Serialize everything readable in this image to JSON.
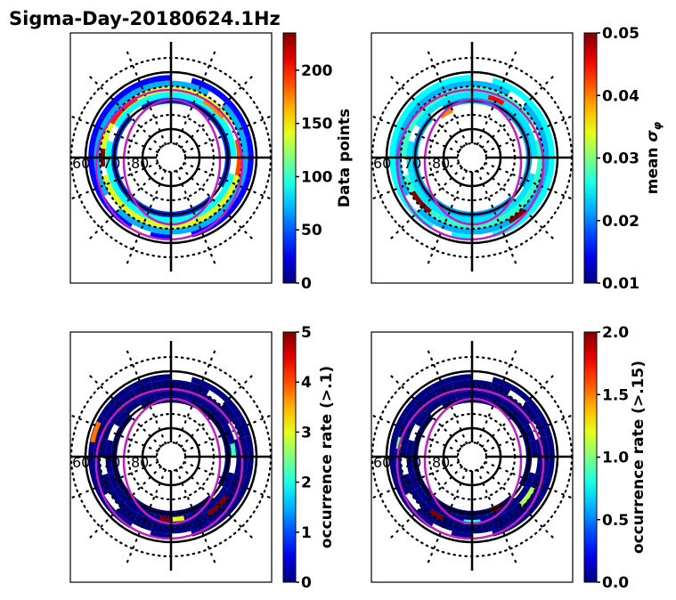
{
  "figure_title": "Sigma-Day-20180624.1Hz",
  "chart_data": [
    {
      "type": "heatmap",
      "projection": "polar (magnetic latitude / MLT)",
      "title": "",
      "colorbar_label": "Data points",
      "colormap": "jet",
      "clim": [
        0,
        235
      ],
      "colorbar_ticks": [
        "0",
        "50",
        "100",
        "150",
        "200"
      ],
      "colorbar_tick_values": [
        0,
        50,
        100,
        150,
        200
      ],
      "lat_labels": [
        "60",
        "70",
        "80"
      ],
      "lat_circles_solid": [
        60,
        70,
        80
      ],
      "lat_range": [
        60,
        90
      ],
      "bins": [
        {
          "lat": 62,
          "mlt_start": 0,
          "mlt_end": 24,
          "value": 30
        },
        {
          "lat": 64,
          "mlt_start": 0,
          "mlt_end": 24,
          "value": 70
        },
        {
          "lat": 66,
          "mlt_start": 0,
          "mlt_end": 24,
          "value": 140
        },
        {
          "lat": 68,
          "mlt_start": 0,
          "mlt_end": 24,
          "value": 90
        },
        {
          "lat": 70,
          "mlt_start": 0,
          "mlt_end": 24,
          "value": 40
        },
        {
          "lat": 66,
          "mlt_start": 14,
          "mlt_end": 16,
          "value": 200
        },
        {
          "lat": 66,
          "mlt_start": 5,
          "mlt_end": 7,
          "value": 190
        },
        {
          "lat": 67,
          "mlt_start": 8.5,
          "mlt_end": 10,
          "value": 175
        },
        {
          "lat": 66,
          "mlt_start": 17.5,
          "mlt_end": 18.5,
          "value": 235
        }
      ]
    },
    {
      "type": "heatmap",
      "projection": "polar (magnetic latitude / MLT)",
      "title": "",
      "colorbar_label": "mean σ_φ",
      "colormap": "jet",
      "clim": [
        0.01,
        0.05
      ],
      "colorbar_ticks": [
        "0.01",
        "0.02",
        "0.03",
        "0.04",
        "0.05"
      ],
      "colorbar_tick_values": [
        0.01,
        0.02,
        0.03,
        0.04,
        0.05
      ],
      "lat_labels": [
        "60",
        "70",
        "80"
      ],
      "lat_circles_solid": [
        60,
        70,
        80
      ],
      "lat_range": [
        60,
        90
      ],
      "bins": [
        {
          "lat": 62,
          "mlt_start": 0,
          "mlt_end": 24,
          "value": 0.025
        },
        {
          "lat": 64,
          "mlt_start": 0,
          "mlt_end": 24,
          "value": 0.022
        },
        {
          "lat": 66,
          "mlt_start": 0,
          "mlt_end": 24,
          "value": 0.027
        },
        {
          "lat": 68,
          "mlt_start": 0,
          "mlt_end": 24,
          "value": 0.024
        },
        {
          "lat": 70,
          "mlt_start": 0,
          "mlt_end": 24,
          "value": 0.021
        },
        {
          "lat": 66,
          "mlt_start": 20,
          "mlt_end": 21.5,
          "value": 0.05
        },
        {
          "lat": 64,
          "mlt_start": 2,
          "mlt_end": 3,
          "value": 0.05
        },
        {
          "lat": 68,
          "mlt_start": 10,
          "mlt_end": 11,
          "value": 0.045
        },
        {
          "lat": 72,
          "mlt_start": 13.5,
          "mlt_end": 14.5,
          "value": 0.04
        }
      ]
    },
    {
      "type": "heatmap",
      "projection": "polar (magnetic latitude / MLT)",
      "title": "",
      "colorbar_label": "occurrence rate (>.1)",
      "colormap": "jet",
      "clim": [
        0,
        5
      ],
      "colorbar_ticks": [
        "0",
        "1",
        "2",
        "3",
        "4",
        "5"
      ],
      "colorbar_tick_values": [
        0,
        1,
        2,
        3,
        4,
        5
      ],
      "lat_labels": [
        "60",
        "70",
        "80"
      ],
      "lat_circles_solid": [
        60,
        70,
        80
      ],
      "lat_range": [
        60,
        90
      ],
      "bins": [
        {
          "lat": 62,
          "mlt_start": 0,
          "mlt_end": 24,
          "value": 0
        },
        {
          "lat": 64,
          "mlt_start": 0,
          "mlt_end": 24,
          "value": 0
        },
        {
          "lat": 66,
          "mlt_start": 0,
          "mlt_end": 24,
          "value": 0
        },
        {
          "lat": 68,
          "mlt_start": 0,
          "mlt_end": 24,
          "value": 0
        },
        {
          "lat": 70,
          "mlt_start": 0,
          "mlt_end": 24,
          "value": 0
        },
        {
          "lat": 62,
          "mlt_start": 16.3,
          "mlt_end": 17.3,
          "value": 3.8
        },
        {
          "lat": 68,
          "mlt_start": 23.3,
          "mlt_end": 24.3,
          "value": 5
        },
        {
          "lat": 68,
          "mlt_start": 0.1,
          "mlt_end": 0.8,
          "value": 3
        },
        {
          "lat": 66,
          "mlt_start": 2.2,
          "mlt_end": 3.6,
          "value": 5
        },
        {
          "lat": 68,
          "mlt_start": 6,
          "mlt_end": 6.8,
          "value": 2.2
        }
      ]
    },
    {
      "type": "heatmap",
      "projection": "polar (magnetic latitude / MLT)",
      "title": "",
      "colorbar_label": "occurrence rate (>.15)",
      "colormap": "jet",
      "clim": [
        0,
        2
      ],
      "colorbar_ticks": [
        "0.0",
        "0.5",
        "1.0",
        "1.5",
        "2.0"
      ],
      "colorbar_tick_values": [
        0,
        0.5,
        1.0,
        1.5,
        2.0
      ],
      "lat_labels": [
        "60",
        "70",
        "80"
      ],
      "lat_circles_solid": [
        60,
        70,
        80
      ],
      "lat_range": [
        60,
        90
      ],
      "bins": [
        {
          "lat": 62,
          "mlt_start": 0,
          "mlt_end": 24,
          "value": 0
        },
        {
          "lat": 64,
          "mlt_start": 0,
          "mlt_end": 24,
          "value": 0
        },
        {
          "lat": 66,
          "mlt_start": 0,
          "mlt_end": 24,
          "value": 0
        },
        {
          "lat": 68,
          "mlt_start": 0,
          "mlt_end": 24,
          "value": 0
        },
        {
          "lat": 70,
          "mlt_start": 0,
          "mlt_end": 24,
          "value": 0
        },
        {
          "lat": 67,
          "mlt_start": 23.5,
          "mlt_end": 24.5,
          "value": 0.8
        },
        {
          "lat": 66,
          "mlt_start": 3,
          "mlt_end": 4.2,
          "value": 1.1
        },
        {
          "lat": 70,
          "mlt_start": 1.2,
          "mlt_end": 2.0,
          "value": 2.0
        },
        {
          "lat": 66,
          "mlt_start": 21.5,
          "mlt_end": 22.3,
          "value": 2.0
        },
        {
          "lat": 64,
          "mlt_start": 17,
          "mlt_end": 17.6,
          "value": 1.0
        }
      ]
    }
  ]
}
